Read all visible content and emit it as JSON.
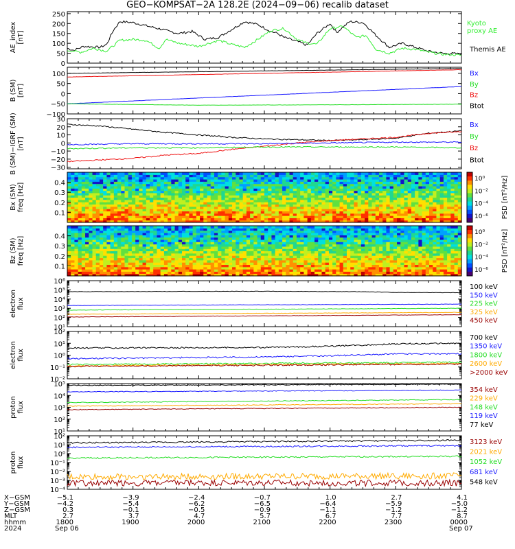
{
  "title": "GEO−KOMPSAT−2A 128.2E (2024−09−06) recalib dataset",
  "colors": {
    "black": "#000000",
    "blue": "#1a1aff",
    "green": "#22dd22",
    "red": "#ee1111",
    "orange": "#ffaa00",
    "darkred": "#990000",
    "brightgreen": "#33ee33"
  },
  "chart_data": [
    {
      "id": "ae",
      "type": "line",
      "ylabel": "AE_index\n[nT]",
      "ylim": [
        0,
        260
      ],
      "yticks": [
        "0",
        "50",
        "100",
        "150",
        "200",
        "250"
      ],
      "series": [
        {
          "name": "Themis AE",
          "color": "black",
          "x": [
            0,
            0.1,
            0.25,
            0.5,
            0.6,
            0.7,
            0.8,
            1.0,
            1.25,
            1.45,
            1.55,
            1.7,
            1.9,
            2.1,
            2.3,
            2.5,
            2.7,
            2.9,
            3.1,
            3.2,
            3.3,
            3.5,
            3.65,
            3.8,
            4.0,
            4.1,
            4.3,
            4.5,
            4.55,
            4.7,
            4.9,
            5.1,
            5.3,
            5.5,
            5.7,
            5.9,
            6.0
          ],
          "values": [
            75,
            65,
            85,
            80,
            95,
            165,
            210,
            205,
            185,
            170,
            160,
            150,
            160,
            120,
            130,
            170,
            210,
            195,
            160,
            150,
            130,
            110,
            90,
            150,
            200,
            155,
            210,
            205,
            190,
            140,
            80,
            100,
            80,
            60,
            50,
            48,
            45
          ]
        },
        {
          "name": "Kyoto proxy AE",
          "color": "brightgreen",
          "x": [
            0,
            0.2,
            0.4,
            0.6,
            0.8,
            1.0,
            1.2,
            1.4,
            1.5,
            1.7,
            2.0,
            2.3,
            2.5,
            2.7,
            2.9,
            3.1,
            3.3,
            3.5,
            3.6,
            3.8,
            4.0,
            4.2,
            4.4,
            4.55,
            4.7,
            4.9,
            5.1,
            5.3,
            5.5,
            5.7,
            6.0
          ],
          "values": [
            65,
            55,
            75,
            60,
            115,
            120,
            115,
            75,
            120,
            100,
            85,
            115,
            95,
            80,
            120,
            165,
            175,
            120,
            105,
            95,
            175,
            185,
            130,
            140,
            70,
            50,
            75,
            70,
            55,
            45,
            40
          ]
        }
      ]
    },
    {
      "id": "bsm",
      "type": "line",
      "ylabel": "B (SM)\n[nT]",
      "ylim": [
        -100,
        130
      ],
      "yticks": [
        "−100",
        "−50",
        "0",
        "50",
        "100"
      ],
      "series": [
        {
          "name": "Btot",
          "color": "black",
          "x": [
            0,
            6
          ],
          "values": [
            100,
            124
          ]
        },
        {
          "name": "Bz",
          "color": "red",
          "x": [
            0,
            6
          ],
          "values": [
            82,
            118
          ]
        },
        {
          "name": "Bx",
          "color": "blue",
          "x": [
            0,
            6
          ],
          "values": [
            -50,
            35
          ]
        },
        {
          "name": "By",
          "color": "green",
          "x": [
            0,
            2,
            4,
            6
          ],
          "values": [
            -50,
            -57,
            -55,
            -52
          ]
        }
      ]
    },
    {
      "id": "bsmigrf",
      "type": "line",
      "ylabel": "B (SM)−IGRF (SM)\n[nT]",
      "ylim": [
        -32,
        30
      ],
      "yticks": [
        "−30",
        "−20",
        "−10",
        "0",
        "10",
        "20",
        "30"
      ],
      "series": [
        {
          "name": "Btot",
          "color": "black",
          "x": [
            0,
            0.5,
            1,
            1.5,
            2,
            2.5,
            3,
            3.5,
            4,
            4.5,
            5,
            5.5,
            6
          ],
          "values": [
            23,
            21,
            17,
            13,
            10,
            7,
            5,
            4,
            3,
            4,
            6,
            12,
            15
          ]
        },
        {
          "name": "Bz",
          "color": "red",
          "x": [
            0,
            0.5,
            1,
            1.5,
            2,
            2.5,
            3,
            3.5,
            4,
            4.5,
            5,
            5.5,
            6
          ],
          "values": [
            -23,
            -21,
            -19,
            -15,
            -13,
            -8,
            -4,
            0,
            3,
            5,
            7,
            12,
            14
          ]
        },
        {
          "name": "Bx",
          "color": "blue",
          "x": [
            0,
            1,
            2,
            3,
            4,
            5,
            6
          ],
          "values": [
            -2,
            -1,
            -1,
            -1,
            0,
            1,
            1
          ]
        },
        {
          "name": "By",
          "color": "green",
          "x": [
            0,
            1,
            2,
            3,
            4,
            5,
            6
          ],
          "values": [
            -7,
            -6,
            -6,
            -5,
            -5,
            -5,
            -6
          ]
        }
      ]
    },
    {
      "id": "bxpsd",
      "type": "heatmap",
      "ylabel": "Bx (SM)\nfreq [Hz]",
      "yticks": [
        "0.1",
        "0.2",
        "0.3",
        "0.4"
      ],
      "colorbar_label": "PSD [nT²/Hz]",
      "colorbar_ticks": [
        "10⁰",
        "10⁻²",
        "10⁻⁴",
        "10⁻⁶"
      ]
    },
    {
      "id": "bzpsd",
      "type": "heatmap",
      "ylabel": "Bz (SM)\nfreq [Hz]",
      "yticks": [
        "0.1",
        "0.2",
        "0.3",
        "0.4"
      ],
      "colorbar_label": "PSD [nT²/Hz]",
      "colorbar_ticks": [
        "10⁰",
        "10⁻²",
        "10⁻⁴",
        "10⁻⁶"
      ]
    },
    {
      "id": "eflux1",
      "type": "line",
      "log": true,
      "ylabel": "electron\nflux",
      "ylim_exp": [
        1,
        6
      ],
      "yticks": [
        "10¹",
        "10²",
        "10³",
        "10⁴",
        "10⁵",
        "10⁶"
      ],
      "series": [
        {
          "name": "100 keV",
          "color": "black",
          "x": [
            0,
            3,
            4.5,
            5,
            6
          ],
          "values": [
            4.8,
            4.85,
            4.8,
            4.72,
            4.7
          ]
        },
        {
          "name": "150 keV",
          "color": "blue",
          "x": [
            0,
            6
          ],
          "values": [
            3.3,
            3.45
          ]
        },
        {
          "name": "225 keV",
          "color": "green",
          "x": [
            0,
            6
          ],
          "values": [
            2.8,
            3.0
          ]
        },
        {
          "name": "325 keV",
          "color": "orange",
          "x": [
            0,
            6
          ],
          "values": [
            2.35,
            2.55
          ]
        },
        {
          "name": "450 keV",
          "color": "darkred",
          "x": [
            0,
            6
          ],
          "values": [
            2.05,
            2.3
          ]
        }
      ]
    },
    {
      "id": "eflux2",
      "type": "line",
      "log": true,
      "ylabel": "electron\nflux",
      "ylim_exp": [
        -2,
        2
      ],
      "yticks": [
        "10⁻²",
        "10⁻¹",
        "10⁰",
        "10¹",
        "10²"
      ],
      "series": [
        {
          "name": "700 keV",
          "color": "black",
          "x": [
            0,
            3,
            4,
            5,
            6
          ],
          "values": [
            0.6,
            0.65,
            0.75,
            0.95,
            1.0
          ]
        },
        {
          "name": "1350 keV",
          "color": "blue",
          "x": [
            0,
            3,
            4,
            5,
            6
          ],
          "values": [
            -0.3,
            -0.15,
            -0.05,
            0.1,
            0.12
          ]
        },
        {
          "name": "1800 keV",
          "color": "green",
          "x": [
            0,
            6
          ],
          "values": [
            -0.8,
            -0.6
          ]
        },
        {
          "name": "2600 keV",
          "color": "orange",
          "x": [
            0,
            6
          ],
          "values": [
            -0.9,
            -0.7
          ]
        },
        {
          "name": ">2000 keV",
          "color": "darkred",
          "x": [
            0,
            6
          ],
          "values": [
            -0.95,
            -0.75
          ]
        }
      ]
    },
    {
      "id": "pflux1",
      "type": "line",
      "log": true,
      "ylabel": "proton\nflux",
      "ylim_exp": [
        1,
        5
      ],
      "yticks": [
        "10¹",
        "10²",
        "10³",
        "10⁴",
        "10⁵"
      ],
      "series": [
        {
          "name": "354 keV",
          "color": "darkred",
          "x": [
            0,
            6
          ],
          "values": [
            2.8,
            3.0
          ]
        },
        {
          "name": "229 keV",
          "color": "orange",
          "x": [
            0,
            6
          ],
          "values": [
            3.1,
            3.3
          ]
        },
        {
          "name": "148 keV",
          "color": "green",
          "x": [
            0,
            6
          ],
          "values": [
            3.4,
            3.65
          ]
        },
        {
          "name": "119 keV",
          "color": "blue",
          "x": [
            0,
            6
          ],
          "values": [
            4.3,
            4.45
          ]
        },
        {
          "name": "77 keV",
          "color": "black",
          "x": [
            0,
            6
          ],
          "values": [
            4.85,
            4.95
          ]
        }
      ]
    },
    {
      "id": "pflux2",
      "type": "line",
      "log": true,
      "ylabel": "proton\nflux",
      "ylim_exp": [
        -4,
        2
      ],
      "yticks": [
        "10⁻⁴",
        "10⁻³",
        "10⁻²",
        "10⁻¹",
        "10⁰",
        "10¹",
        "10²"
      ],
      "series": [
        {
          "name": "3123 keV",
          "color": "darkred",
          "x": [
            0,
            6
          ],
          "values": [
            -3.3,
            -3.3
          ]
        },
        {
          "name": "2021 keV",
          "color": "orange",
          "x": [
            0,
            6
          ],
          "values": [
            -2.6,
            -2.5
          ]
        },
        {
          "name": "1052 keV",
          "color": "green",
          "x": [
            0,
            6
          ],
          "values": [
            -0.5,
            -0.3
          ]
        },
        {
          "name": "681 keV",
          "color": "blue",
          "x": [
            0,
            6
          ],
          "values": [
            0.7,
            0.9
          ]
        },
        {
          "name": "548 keV",
          "color": "black",
          "x": [
            0,
            6
          ],
          "values": [
            1.2,
            1.5
          ]
        }
      ]
    }
  ],
  "x_axis": {
    "row_labels": [
      "X−GSM",
      "Y−GSM",
      "Z−GSM",
      "MLT",
      "hhmm",
      "2024"
    ],
    "columns": [
      [
        "−5.1",
        "−4.2",
        "0.3",
        "2.7",
        "1800",
        "Sep 06"
      ],
      [
        "−3.9",
        "−5.4",
        "−0.1",
        "3.7",
        "1900",
        ""
      ],
      [
        "−2.4",
        "−6.2",
        "−0.5",
        "4.7",
        "2000",
        ""
      ],
      [
        "−0.7",
        "−6.5",
        "−0.9",
        "5.7",
        "2100",
        ""
      ],
      [
        "1.0",
        "−6.4",
        "−1.1",
        "6.7",
        "2200",
        ""
      ],
      [
        "2.7",
        "−5.9",
        "−1.2",
        "7.7",
        "2300",
        ""
      ],
      [
        "4.1",
        "−5.0",
        "−1.2",
        "8.7",
        "0000",
        "Sep 07"
      ]
    ]
  }
}
